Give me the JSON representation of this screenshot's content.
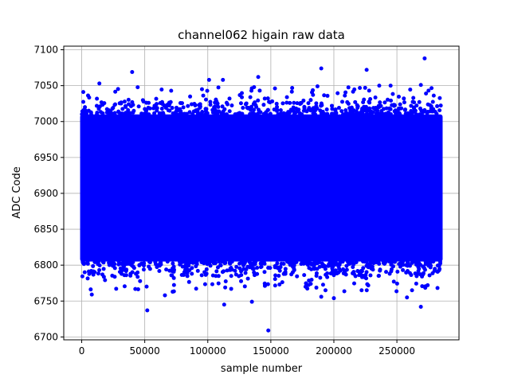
{
  "chart_data": {
    "type": "scatter",
    "title": "channel062 higain raw data",
    "xlabel": "sample number",
    "ylabel": "ADC Code",
    "xlim": [
      -14250,
      299250
    ],
    "ylim": [
      6696,
      7105
    ],
    "xticks": [
      0,
      50000,
      100000,
      150000,
      200000,
      250000
    ],
    "xtick_labels": [
      "0",
      "50000",
      "100000",
      "150000",
      "200000",
      "250000"
    ],
    "yticks": [
      6700,
      6750,
      6800,
      6850,
      6900,
      6950,
      7000,
      7050,
      7100
    ],
    "ytick_labels": [
      "6700",
      "6750",
      "6800",
      "6850",
      "6900",
      "6950",
      "7000",
      "7050",
      "7100"
    ],
    "grid": true,
    "marker_color": "#0000ff",
    "series": [
      {
        "band": {
          "x": [
            0,
            285000
          ],
          "y_dense": [
            6805,
            7010
          ],
          "y_common": [
            6785,
            7028
          ]
        },
        "outliers": [
          {
            "x": 40000,
            "y": 7069
          },
          {
            "x": 190000,
            "y": 7074
          },
          {
            "x": 226000,
            "y": 7072
          },
          {
            "x": 272000,
            "y": 7088
          },
          {
            "x": 140000,
            "y": 7062
          },
          {
            "x": 101000,
            "y": 7058
          },
          {
            "x": 112000,
            "y": 7058
          },
          {
            "x": 14000,
            "y": 7053
          },
          {
            "x": 245000,
            "y": 7050
          },
          {
            "x": 236000,
            "y": 7050
          },
          {
            "x": 187000,
            "y": 7049
          },
          {
            "x": 269000,
            "y": 7051
          },
          {
            "x": 52000,
            "y": 6737
          },
          {
            "x": 148000,
            "y": 6709
          },
          {
            "x": 113000,
            "y": 6745
          },
          {
            "x": 135000,
            "y": 6749
          },
          {
            "x": 8000,
            "y": 6759
          },
          {
            "x": 66000,
            "y": 6758
          },
          {
            "x": 190000,
            "y": 6756
          },
          {
            "x": 200000,
            "y": 6754
          },
          {
            "x": 258000,
            "y": 6755
          },
          {
            "x": 269000,
            "y": 6742
          },
          {
            "x": 262000,
            "y": 6765
          },
          {
            "x": 222000,
            "y": 6765
          }
        ]
      }
    ]
  }
}
